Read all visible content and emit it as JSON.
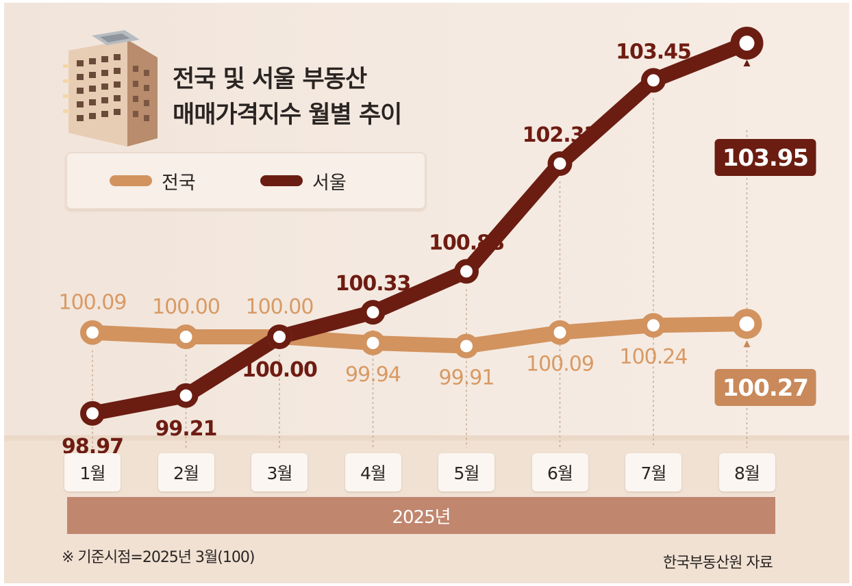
{
  "title": {
    "line1": "전국 및 서울 부동산",
    "line2": "매매가격지수 월별 추이"
  },
  "legend": [
    {
      "label": "전국",
      "color": "#d2935f"
    },
    {
      "label": "서울",
      "color": "#6b1d12"
    }
  ],
  "chart_data": {
    "type": "line",
    "categories": [
      "1월",
      "2월",
      "3월",
      "4월",
      "5월",
      "6월",
      "7월",
      "8월"
    ],
    "series": [
      {
        "name": "전국",
        "values": [
          100.09,
          100.0,
          100.0,
          99.94,
          99.91,
          100.09,
          100.24,
          100.27
        ],
        "labels": [
          "100.09",
          "100.00",
          "100.00",
          "99.94",
          "99.91",
          "100.09",
          "100.24",
          "100.27"
        ],
        "color": "#d2935f"
      },
      {
        "name": "서울",
        "values": [
          98.97,
          99.21,
          100.0,
          100.33,
          100.88,
          102.33,
          103.45,
          103.95
        ],
        "labels": [
          "98.97",
          "99.21",
          "100.00",
          "100.33",
          "100.88",
          "102.33",
          "103.45",
          "103.95"
        ],
        "color": "#6b1d12"
      }
    ],
    "year_label": "2025년",
    "xlabel": "",
    "ylabel": "",
    "grid": false,
    "legend_position": "top-left",
    "highlight_last_value": true
  },
  "footnote": "※ 기준시점=2025년 3월(100)",
  "source": "한국부동산원 자료",
  "colors": {
    "nat": "#d2935f",
    "seoul": "#6b1d12",
    "nat_badge": "#c9895a",
    "seoul_badge": "#6b1d12",
    "year_bar": "#c0866e"
  }
}
